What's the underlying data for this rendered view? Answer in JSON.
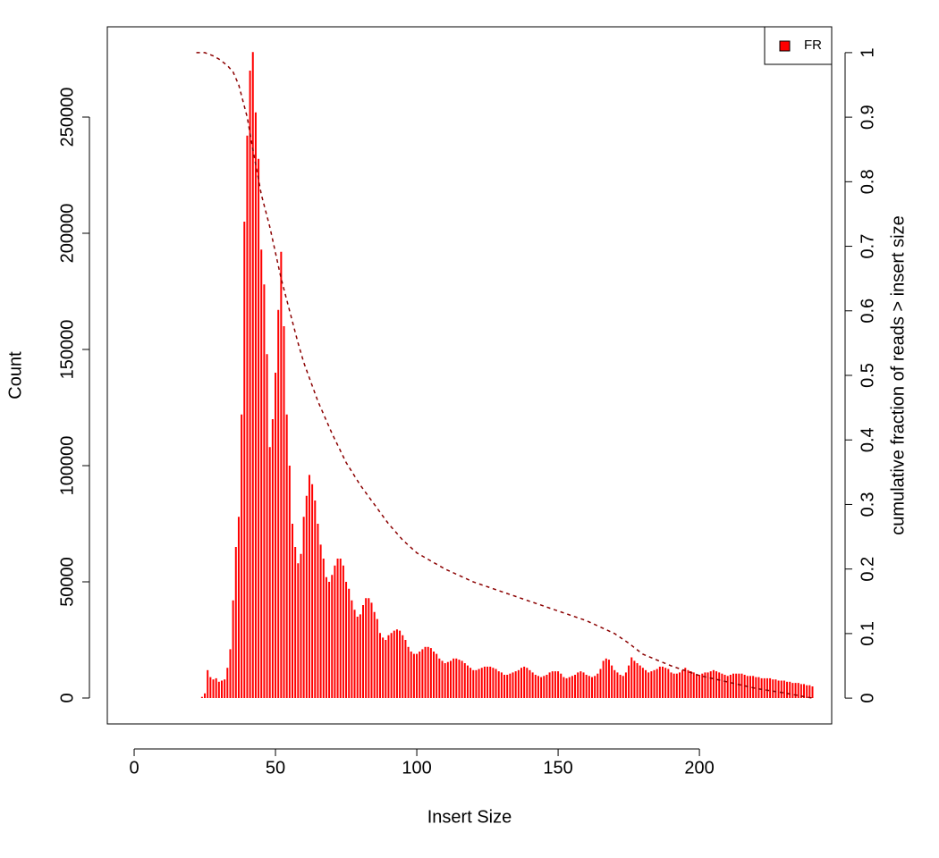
{
  "chart_data": {
    "type": "bar",
    "xlabel": "Insert Size",
    "ylabel": "Count",
    "y2label": "cumulative fraction of reads > insert size",
    "xlim": [
      -9.5,
      246.8
    ],
    "ylim": [
      -11154,
      288846
    ],
    "y2lim": [
      -0.04,
      1.04
    ],
    "xticks": [
      0,
      50,
      100,
      150,
      200
    ],
    "yticks": [
      0,
      50000,
      100000,
      150000,
      200000,
      250000
    ],
    "y2ticks": [
      0,
      0.1,
      0.2,
      0.3,
      0.4,
      0.5,
      0.6,
      0.7,
      0.8,
      0.9,
      1
    ],
    "legend": "top-right",
    "x": [
      22,
      23,
      24,
      25,
      26,
      27,
      28,
      29,
      30,
      31,
      32,
      33,
      34,
      35,
      36,
      37,
      38,
      39,
      40,
      41,
      42,
      43,
      44,
      45,
      46,
      47,
      48,
      49,
      50,
      51,
      52,
      53,
      54,
      55,
      56,
      57,
      58,
      59,
      60,
      61,
      62,
      63,
      64,
      65,
      66,
      67,
      68,
      69,
      70,
      71,
      72,
      73,
      74,
      75,
      76,
      77,
      78,
      79,
      80,
      81,
      82,
      83,
      84,
      85,
      86,
      87,
      88,
      89,
      90,
      91,
      92,
      93,
      94,
      95,
      96,
      97,
      98,
      99,
      100,
      101,
      102,
      103,
      104,
      105,
      106,
      107,
      108,
      109,
      110,
      111,
      112,
      113,
      114,
      115,
      116,
      117,
      118,
      119,
      120,
      121,
      122,
      123,
      124,
      125,
      126,
      127,
      128,
      129,
      130,
      131,
      132,
      133,
      134,
      135,
      136,
      137,
      138,
      139,
      140,
      141,
      142,
      143,
      144,
      145,
      146,
      147,
      148,
      149,
      150,
      151,
      152,
      153,
      154,
      155,
      156,
      157,
      158,
      159,
      160,
      161,
      162,
      163,
      164,
      165,
      166,
      167,
      168,
      169,
      170,
      171,
      172,
      173,
      174,
      175,
      176,
      177,
      178,
      179,
      180,
      181,
      182,
      183,
      184,
      185,
      186,
      187,
      188,
      189,
      190,
      191,
      192,
      193,
      194,
      195,
      196,
      197,
      198,
      199,
      200,
      201,
      202,
      203,
      204,
      205,
      206,
      207,
      208,
      209,
      210,
      211,
      212,
      213,
      214,
      215,
      216,
      217,
      218,
      219,
      220,
      221,
      222,
      223,
      224,
      225,
      226,
      227,
      228,
      229,
      230,
      231,
      232,
      233,
      234,
      235,
      236,
      237,
      238,
      239,
      240
    ],
    "series": [
      {
        "name": "FR",
        "color": "#ff0000",
        "values": [
          0,
          0,
          500,
          2000,
          12000,
          9000,
          8000,
          8500,
          7000,
          7500,
          8000,
          13000,
          21000,
          42000,
          65000,
          78000,
          122000,
          205000,
          242000,
          270000,
          278000,
          252000,
          232000,
          193000,
          178000,
          148000,
          108000,
          120000,
          140000,
          167000,
          192000,
          160000,
          122000,
          100000,
          75000,
          65000,
          58000,
          62000,
          78000,
          87000,
          96000,
          92000,
          85000,
          75000,
          66000,
          60000,
          52000,
          50000,
          53000,
          57000,
          60000,
          60000,
          57000,
          50000,
          47000,
          42000,
          38000,
          35000,
          36000,
          40000,
          43000,
          43000,
          41000,
          37000,
          34000,
          28000,
          26000,
          25000,
          27000,
          28000,
          29000,
          29500,
          29000,
          27000,
          25000,
          22000,
          20000,
          19000,
          19000,
          20000,
          21000,
          22000,
          22000,
          21500,
          20000,
          19000,
          17000,
          16000,
          15000,
          15500,
          16000,
          17000,
          17000,
          16500,
          16000,
          15000,
          14000,
          13000,
          12000,
          12000,
          12500,
          13000,
          13500,
          13500,
          13500,
          13000,
          12500,
          11500,
          11000,
          10000,
          10000,
          10500,
          11000,
          11500,
          12000,
          13000,
          13500,
          13000,
          12000,
          11000,
          10000,
          9500,
          9000,
          9500,
          10000,
          11000,
          11500,
          11500,
          11500,
          10500,
          9000,
          8500,
          9000,
          9500,
          10000,
          11000,
          11500,
          11000,
          10000,
          9500,
          9000,
          9500,
          10500,
          12500,
          16000,
          17000,
          16500,
          14000,
          12000,
          11000,
          10000,
          9500,
          11000,
          14000,
          17500,
          16000,
          15000,
          14000,
          13000,
          12000,
          11000,
          11500,
          12000,
          12500,
          13500,
          13500,
          13000,
          12500,
          11000,
          10500,
          10500,
          11000,
          12000,
          13000,
          12000,
          11500,
          11000,
          10000,
          10000,
          10500,
          11000,
          11000,
          11500,
          12000,
          11500,
          11000,
          10500,
          10000,
          9500,
          10000,
          10500,
          10500,
          10500,
          10500,
          10000,
          9500,
          9500,
          9500,
          9000,
          9000,
          8500,
          8500,
          8500,
          8500,
          8000,
          8000,
          7500,
          7500,
          7500,
          7000,
          7000,
          6500,
          6500,
          6500,
          6000,
          6000,
          5500,
          5500,
          5000
        ]
      },
      {
        "type": "line",
        "axis": "y2",
        "color": "#8b0000",
        "x": [
          22,
          25,
          28,
          30,
          33,
          35,
          37,
          40,
          42,
          45,
          48,
          50,
          52,
          55,
          58,
          60,
          65,
          70,
          75,
          80,
          85,
          90,
          95,
          100,
          110,
          120,
          130,
          140,
          150,
          160,
          165,
          170,
          175,
          180,
          190,
          200,
          210,
          220,
          230,
          240
        ],
        "values": [
          1,
          1,
          0.995,
          0.99,
          0.98,
          0.97,
          0.95,
          0.9,
          0.85,
          0.78,
          0.73,
          0.69,
          0.65,
          0.6,
          0.55,
          0.52,
          0.46,
          0.41,
          0.365,
          0.33,
          0.3,
          0.27,
          0.245,
          0.225,
          0.2,
          0.18,
          0.165,
          0.15,
          0.135,
          0.12,
          0.11,
          0.1,
          0.085,
          0.068,
          0.05,
          0.035,
          0.025,
          0.015,
          0.008,
          0
        ]
      }
    ]
  }
}
